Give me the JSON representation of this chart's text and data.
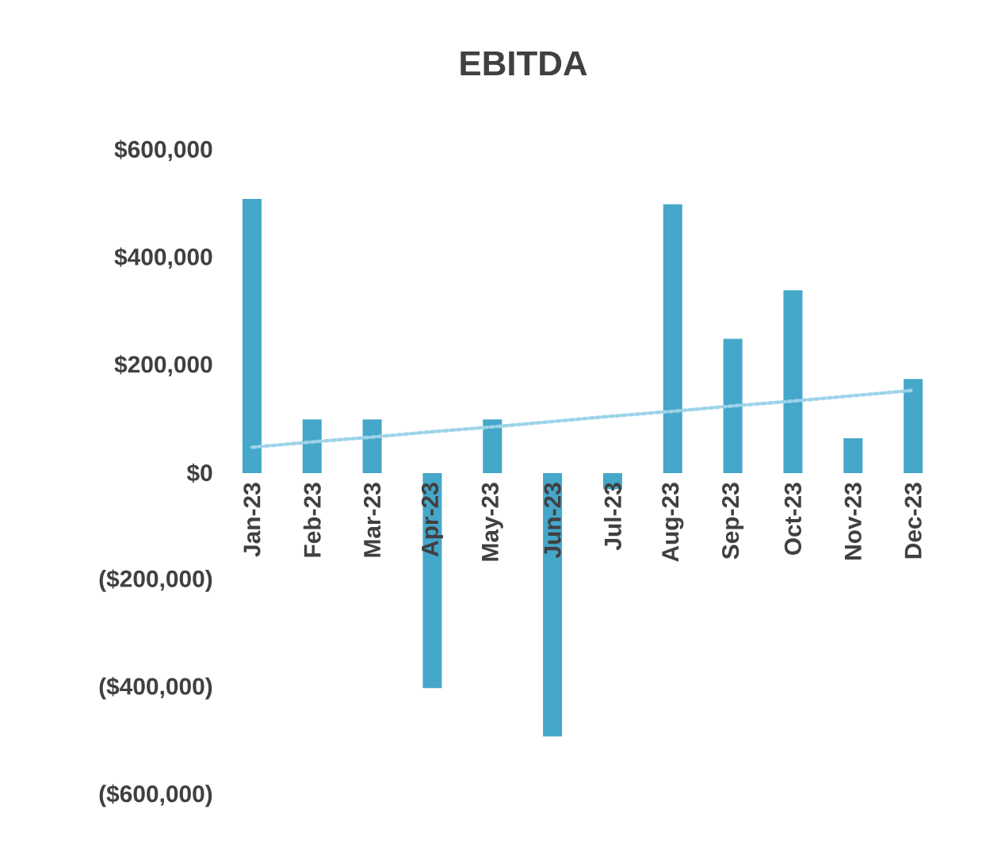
{
  "chart_data": {
    "type": "bar",
    "title": "EBITDA",
    "categories": [
      "Jan-23",
      "Feb-23",
      "Mar-23",
      "Apr-23",
      "May-23",
      "Jun-23",
      "Jul-23",
      "Aug-23",
      "Sep-23",
      "Oct-23",
      "Nov-23",
      "Dec-23"
    ],
    "series": [
      {
        "color": "#45a7c9",
        "values": [
          510000,
          100000,
          100000,
          -400000,
          100000,
          -490000,
          -30000,
          500000,
          250000,
          340000,
          65000,
          175000
        ]
      },
      {
        "type": "line",
        "color": "#9dd3ea",
        "line_style": "dotted",
        "values": [
          48000,
          58000,
          67000,
          77000,
          86000,
          96000,
          106000,
          115000,
          125000,
          134000,
          144000,
          154000
        ]
      }
    ],
    "ylim": [
      -600000,
      600000
    ],
    "yticks": [
      {
        "value": -600000,
        "label": "($600,000)"
      },
      {
        "value": -400000,
        "label": "($400,000)"
      },
      {
        "value": -200000,
        "label": "($200,000)"
      },
      {
        "value": 0,
        "label": "$0"
      },
      {
        "value": 200000,
        "label": "$200,000"
      },
      {
        "value": 400000,
        "label": "$400,000"
      },
      {
        "value": 600000,
        "label": "$600,000"
      }
    ]
  }
}
